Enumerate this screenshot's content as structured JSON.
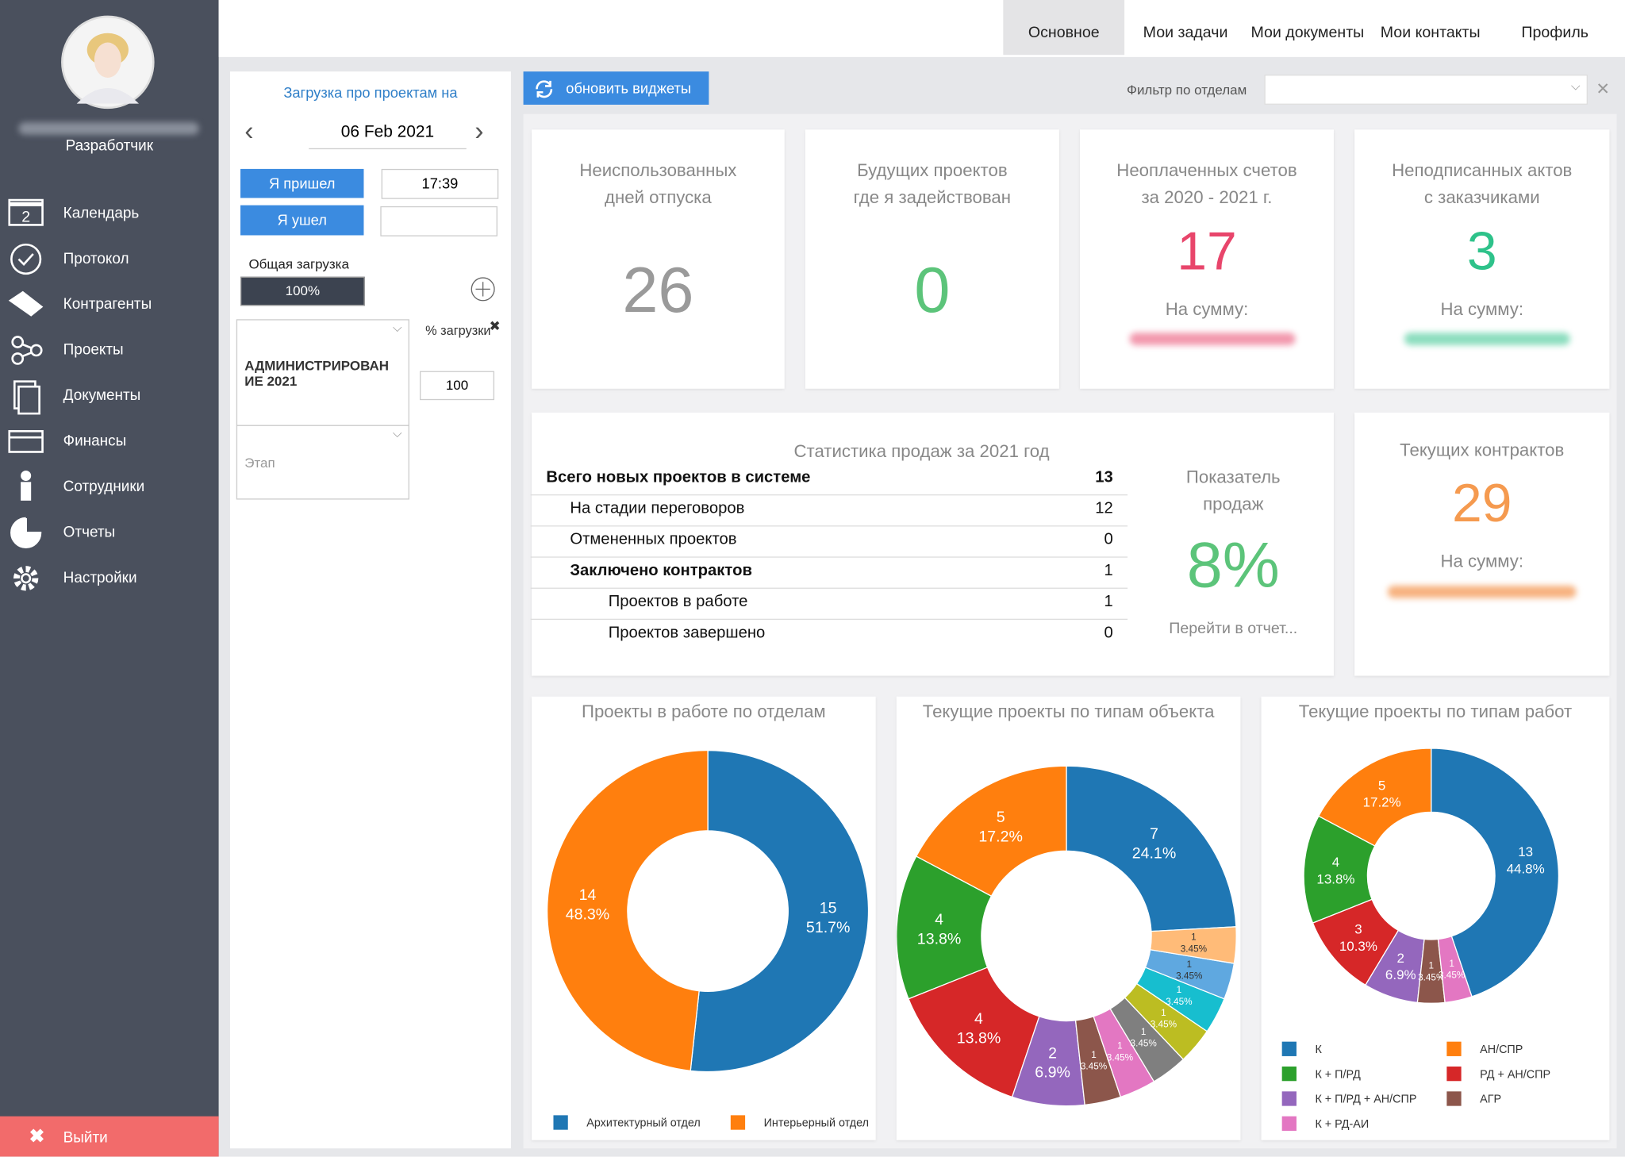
{
  "user": {
    "role": "Разработчик"
  },
  "menu": [
    "Календарь",
    "Протокол",
    "Контрагенты",
    "Проекты",
    "Документы",
    "Финансы",
    "Сотрудники",
    "Отчеты",
    "Настройки"
  ],
  "calendar_badge": "2",
  "logout": "Выйти",
  "tabs": [
    "Основное",
    "Мои задачи",
    "Мои документы",
    "Мои контакты",
    "Профиль"
  ],
  "workload": {
    "title": "Загрузка про проектам на",
    "date": "06 Feb 2021",
    "arrived_button": "Я пришел",
    "arrived_time": "17:39",
    "left_button": "Я ушел",
    "total_label": "Общая загрузка",
    "total_value": "100%",
    "project": "АДМИНИСТРИРОВАНИЕ 2021",
    "percent_label": "% загрузки",
    "percent_value": "100",
    "stage_placeholder": "Этап"
  },
  "toolbar": {
    "refresh": "обновить виджеты",
    "filter_label": "Фильтр по отделам"
  },
  "widgets": [
    {
      "title_lines": [
        "Неиспользованных",
        "дней отпуска"
      ],
      "value": 26,
      "color": "#9a9a9a"
    },
    {
      "title_lines": [
        "Будущих проектов",
        "где я задействован"
      ],
      "value": 0,
      "color": "#5cc47a"
    },
    {
      "title_lines": [
        "Неоплаченных счетов",
        "за 2020 - 2021 г."
      ],
      "value": 17,
      "color": "#e8456b",
      "sum_label": "На сумму:"
    },
    {
      "title_lines": [
        "Неподписанных актов",
        "с заказчиками"
      ],
      "value": 3,
      "color": "#2ec28a",
      "sum_label": "На сумму:"
    }
  ],
  "sales": {
    "title": "Статистика продаж за 2021 год",
    "rows": [
      {
        "label": "Всего новых проектов в системе",
        "value": 13
      },
      {
        "label": "На стадии переговоров",
        "value": 12
      },
      {
        "label": "Отмененных проектов",
        "value": 0
      },
      {
        "label": "Заключено контрактов",
        "value": 1
      },
      {
        "label": "Проектов в работе",
        "value": 1
      },
      {
        "label": "Проектов завершено",
        "value": 0
      }
    ],
    "indicator_title_lines": [
      "Показатель",
      "продаж"
    ],
    "indicator_value": "8%",
    "indicator_link": "Перейти в отчет..."
  },
  "contracts": {
    "title": "Текущих контрактов",
    "value": 29,
    "sum_label": "На сумму:"
  },
  "charts": [
    {
      "type": "pie",
      "title": "Проекты в работе по отделам",
      "values": [
        15,
        14
      ],
      "percent_labels": [
        "51.7%",
        "48.3%"
      ],
      "names": [
        "Архитектурный отдел",
        "Интерьерный отдел"
      ],
      "colors": [
        "#1f77b4",
        "#ff7f0e"
      ]
    },
    {
      "type": "pie",
      "title": "Текущие проекты по типам объекта",
      "values": [
        7,
        5,
        4,
        4,
        2,
        1,
        1,
        1,
        1,
        1,
        1,
        1
      ],
      "percent_labels": [
        "24.1%",
        "17.2%",
        "13.8%",
        "13.8%",
        "6.9%",
        "3.45%",
        "3.45%",
        "3.45%",
        "3.45%",
        "3.45%",
        "3.45%",
        "3.45%"
      ],
      "colors": [
        "#1f77b4",
        "#ff7f0e",
        "#2ca02c",
        "#d62728",
        "#9467bd",
        "#8c564b",
        "#e377c2",
        "#7f7f7f",
        "#bcbd22",
        "#17becf",
        "#5fa8e0",
        "#ffbb78"
      ]
    },
    {
      "type": "pie",
      "title": "Текущие проекты по типам работ",
      "values": [
        13,
        5,
        4,
        3,
        2,
        1,
        1
      ],
      "percent_labels": [
        "44.8%",
        "17.2%",
        "13.8%",
        "10.3%",
        "6.9%",
        "3.45%",
        "3.45%"
      ],
      "names": [
        "К",
        "АН/СПР",
        "К + П/РД",
        "РД + АН/СПР",
        "К + П/РД + АН/СПР",
        "АГР",
        "К + РД-АИ"
      ],
      "colors": [
        "#1f77b4",
        "#ff7f0e",
        "#2ca02c",
        "#d62728",
        "#9467bd",
        "#8c564b",
        "#e377c2"
      ]
    }
  ]
}
